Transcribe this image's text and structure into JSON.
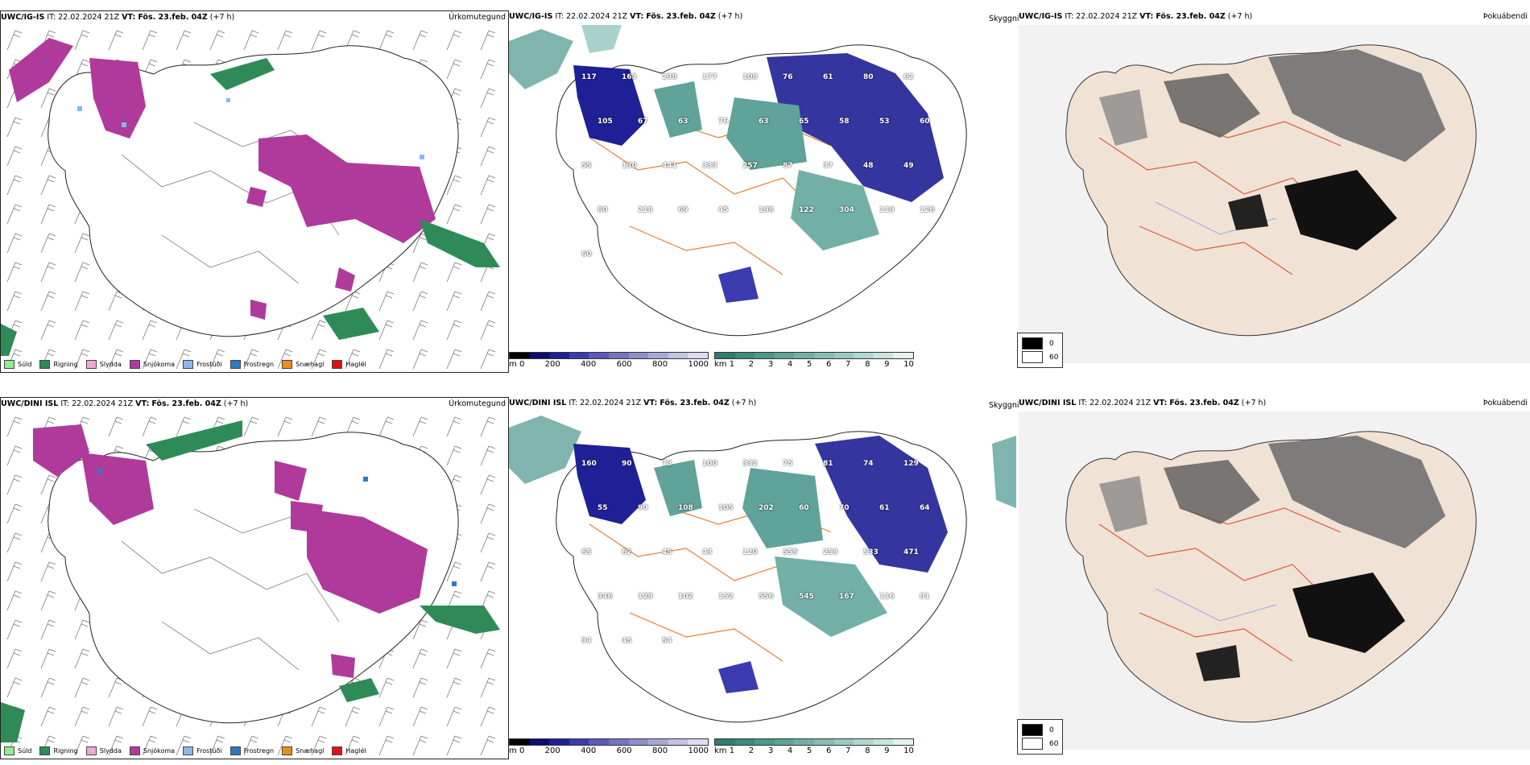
{
  "rows": [
    {
      "model": "UWC/IG-IS",
      "it_label": "IT:",
      "it_value": "22.02.2024 21Z",
      "vt_label": "VT:",
      "vt_value": "Fös. 23.feb. 04Z",
      "lead": "(+7 h)"
    },
    {
      "model": "UWC/DINI ISL",
      "it_label": "IT:",
      "it_value": "22.02.2024 21Z",
      "vt_label": "VT:",
      "vt_value": "Fös. 23.feb. 04Z",
      "lead": "(+7 h)"
    }
  ],
  "panel_titles": {
    "precip_type": "Úrkomutegund",
    "visibility": "Skyggni",
    "fog": "Þokuábendi"
  },
  "precip_legend": [
    {
      "label": "Súld",
      "color": "#90ee90"
    },
    {
      "label": "Rigning",
      "color": "#2e8b57"
    },
    {
      "label": "Slydda",
      "color": "#f4a6d7"
    },
    {
      "label": "Snjókoma",
      "color": "#b03a9b"
    },
    {
      "label": "Frostúði",
      "color": "#87b7ee"
    },
    {
      "label": "Frostregn",
      "color": "#2f78c4"
    },
    {
      "label": "Snæhagl",
      "color": "#f08c1a"
    },
    {
      "label": "Haglél",
      "color": "#e01010"
    }
  ],
  "cloud_base_bar": {
    "unit": "m",
    "ticks": [
      "0",
      "200",
      "400",
      "600",
      "800",
      "1000"
    ],
    "colors": [
      "#000000",
      "#0d0d6e",
      "#1f1f96",
      "#3b3bb0",
      "#5a5ab8",
      "#7474c0",
      "#8e8ec8",
      "#a8a8d6",
      "#c2c2e2",
      "#dcdcf0"
    ]
  },
  "visibility_bar": {
    "unit": "km",
    "ticks": [
      "1",
      "2",
      "3",
      "4",
      "5",
      "6",
      "7",
      "8",
      "9",
      "10"
    ],
    "colors": [
      "#2e7d72",
      "#3d8a7f",
      "#4d978c",
      "#5fa39a",
      "#72b0a7",
      "#86bdb5",
      "#9bcac3",
      "#b1d7d1",
      "#c8e4df",
      "#e2f2ef"
    ]
  },
  "fog_legend": [
    {
      "value": "0",
      "color": "#000000"
    },
    {
      "value": "60",
      "color": "#ffffff"
    }
  ],
  "cloud_labels": {
    "top": [
      "117",
      "163",
      "238",
      "177",
      "108",
      "76",
      "61",
      "80",
      "62",
      "105",
      "67",
      "63",
      "76",
      "63",
      "65",
      "58",
      "53",
      "60",
      "55",
      "130",
      "441",
      "333",
      "257",
      "87",
      "37",
      "48",
      "49",
      "80",
      "218",
      "69",
      "45",
      "198",
      "122",
      "304",
      "119",
      "126",
      "60"
    ],
    "bottom": [
      "160",
      "90",
      "73",
      "100",
      "332",
      "75",
      "81",
      "74",
      "129",
      "55",
      "90",
      "108",
      "105",
      "202",
      "60",
      "70",
      "61",
      "64",
      "65",
      "62",
      "45",
      "43",
      "120",
      "555",
      "253",
      "533",
      "471",
      "346",
      "129",
      "102",
      "152",
      "556",
      "545",
      "167",
      "116",
      "81",
      "94",
      "45",
      "54"
    ]
  }
}
